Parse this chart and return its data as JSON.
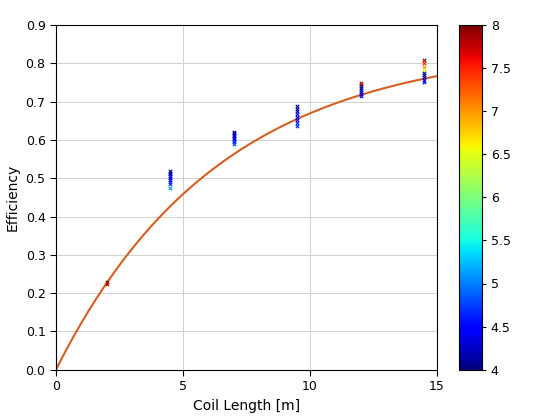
{
  "xlabel": "Coil Length [m]",
  "ylabel": "Efficiency",
  "xlim": [
    0,
    15
  ],
  "ylim": [
    0,
    0.9
  ],
  "xticks": [
    0,
    5,
    10,
    15
  ],
  "yticks": [
    0.0,
    0.1,
    0.2,
    0.3,
    0.4,
    0.5,
    0.6,
    0.7,
    0.8,
    0.9
  ],
  "curve_color": "#d45f20",
  "curve_A": 0.85,
  "curve_B": 0.155,
  "colorbar_min": 4,
  "colorbar_max": 8,
  "colorbar_ticks": [
    4,
    4.5,
    5,
    5.5,
    6,
    6.5,
    7,
    7.5,
    8
  ],
  "scatter_groups": [
    {
      "x": 2.0,
      "points": [
        {
          "efficiency": 0.228,
          "dT": 8.0
        },
        {
          "efficiency": 0.224,
          "dT": 7.8
        }
      ]
    },
    {
      "x": 4.5,
      "points": [
        {
          "efficiency": 0.52,
          "dT": 4.0
        },
        {
          "efficiency": 0.515,
          "dT": 4.1
        },
        {
          "efficiency": 0.51,
          "dT": 4.2
        },
        {
          "efficiency": 0.505,
          "dT": 4.3
        },
        {
          "efficiency": 0.5,
          "dT": 4.4
        },
        {
          "efficiency": 0.495,
          "dT": 4.5
        },
        {
          "efficiency": 0.49,
          "dT": 4.6
        },
        {
          "efficiency": 0.485,
          "dT": 4.7
        },
        {
          "efficiency": 0.475,
          "dT": 5.1
        }
      ]
    },
    {
      "x": 7.0,
      "points": [
        {
          "efficiency": 0.622,
          "dT": 4.0
        },
        {
          "efficiency": 0.618,
          "dT": 4.1
        },
        {
          "efficiency": 0.614,
          "dT": 4.2
        },
        {
          "efficiency": 0.61,
          "dT": 4.3
        },
        {
          "efficiency": 0.606,
          "dT": 4.4
        },
        {
          "efficiency": 0.602,
          "dT": 4.5
        },
        {
          "efficiency": 0.598,
          "dT": 4.6
        },
        {
          "efficiency": 0.594,
          "dT": 4.7
        },
        {
          "efficiency": 0.59,
          "dT": 4.8
        }
      ]
    },
    {
      "x": 9.5,
      "points": [
        {
          "efficiency": 0.69,
          "dT": 4.0
        },
        {
          "efficiency": 0.682,
          "dT": 4.1
        },
        {
          "efficiency": 0.675,
          "dT": 4.2
        },
        {
          "efficiency": 0.668,
          "dT": 4.3
        },
        {
          "efficiency": 0.66,
          "dT": 4.4
        },
        {
          "efficiency": 0.652,
          "dT": 4.5
        },
        {
          "efficiency": 0.644,
          "dT": 4.6
        },
        {
          "efficiency": 0.636,
          "dT": 4.7
        }
      ]
    },
    {
      "x": 12.0,
      "points": [
        {
          "efficiency": 0.75,
          "dT": 8.0
        },
        {
          "efficiency": 0.747,
          "dT": 7.5
        },
        {
          "efficiency": 0.74,
          "dT": 4.0
        },
        {
          "efficiency": 0.735,
          "dT": 4.1
        },
        {
          "efficiency": 0.73,
          "dT": 4.2
        },
        {
          "efficiency": 0.725,
          "dT": 4.3
        },
        {
          "efficiency": 0.72,
          "dT": 4.4
        },
        {
          "efficiency": 0.715,
          "dT": 4.5
        }
      ]
    },
    {
      "x": 14.5,
      "points": [
        {
          "efficiency": 0.808,
          "dT": 8.0
        },
        {
          "efficiency": 0.8,
          "dT": 7.5
        },
        {
          "efficiency": 0.792,
          "dT": 7.0
        },
        {
          "efficiency": 0.784,
          "dT": 6.5
        },
        {
          "efficiency": 0.776,
          "dT": 4.0
        },
        {
          "efficiency": 0.77,
          "dT": 4.1
        },
        {
          "efficiency": 0.764,
          "dT": 4.2
        },
        {
          "efficiency": 0.758,
          "dT": 4.3
        },
        {
          "efficiency": 0.752,
          "dT": 4.4
        }
      ]
    }
  ],
  "background_color": "#ffffff",
  "grid_color": "#d0d0d0"
}
